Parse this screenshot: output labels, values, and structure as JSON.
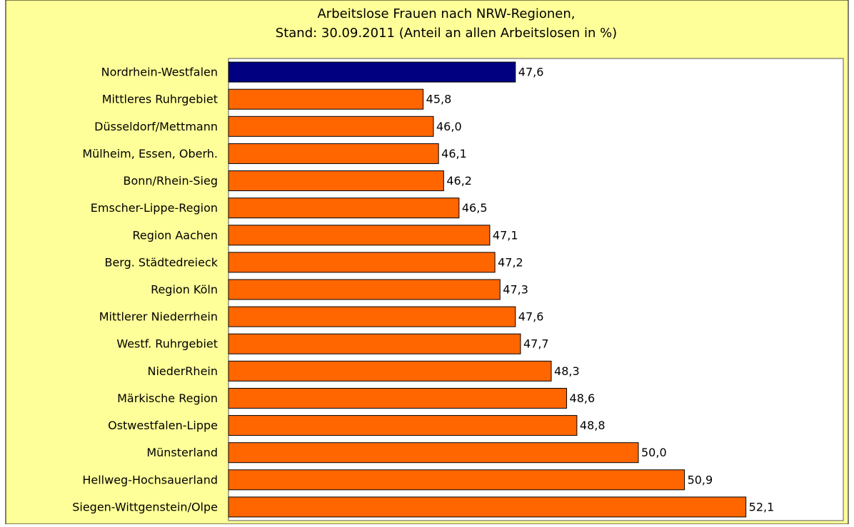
{
  "chart_data": {
    "type": "bar",
    "orientation": "horizontal",
    "title": [
      "Arbeitslose Frauen nach NRW-Regionen,",
      "Stand: 30.09.2011 (Anteil an allen Arbeitslosen in %)"
    ],
    "categories": [
      "Nordrhein-Westfalen",
      "Mittleres Ruhrgebiet",
      "Düsseldorf/Mettmann",
      "Mülheim, Essen, Oberh.",
      "Bonn/Rhein-Sieg",
      "Emscher-Lippe-Region",
      "Region Aachen",
      "Berg. Städtedreieck",
      "Region Köln",
      "Mittlerer Niederrhein",
      "Westf. Ruhrgebiet",
      "NiederRhein",
      "Märkische Region",
      "Ostwestfalen-Lippe",
      "Münsterland",
      "Hellweg-Hochsauerland",
      "Siegen-Wittgenstein/Olpe"
    ],
    "values": [
      47.6,
      45.8,
      46.0,
      46.1,
      46.2,
      46.5,
      47.1,
      47.2,
      47.3,
      47.6,
      47.7,
      48.3,
      48.6,
      48.8,
      50.0,
      50.9,
      52.1
    ],
    "value_labels": [
      "47,6",
      "45,8",
      "46,0",
      "46,1",
      "46,2",
      "46,5",
      "47,1",
      "47,2",
      "47,3",
      "47,6",
      "47,7",
      "48,3",
      "48,6",
      "48,8",
      "50,0",
      "50,9",
      "52,1"
    ],
    "colors": [
      "#000080",
      "#ff6600",
      "#ff6600",
      "#ff6600",
      "#ff6600",
      "#ff6600",
      "#ff6600",
      "#ff6600",
      "#ff6600",
      "#ff6600",
      "#ff6600",
      "#ff6600",
      "#ff6600",
      "#ff6600",
      "#ff6600",
      "#ff6600",
      "#ff6600"
    ],
    "xlim": [
      42,
      54
    ]
  }
}
